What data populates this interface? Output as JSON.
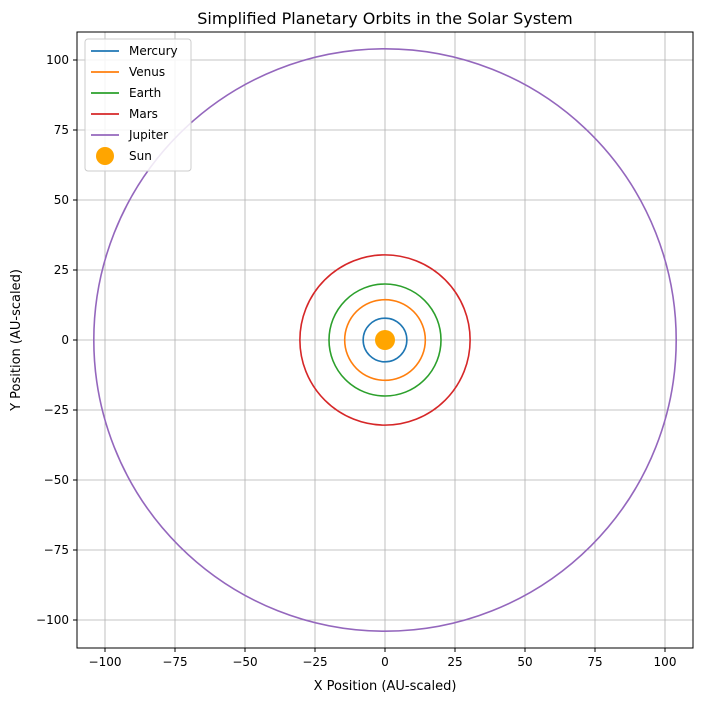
{
  "chart_data": {
    "type": "line",
    "title": "Simplified Planetary Orbits in the Solar System",
    "xlabel": "X Position (AU-scaled)",
    "ylabel": "Y Position (AU-scaled)",
    "xlim": [
      -110,
      110
    ],
    "ylim": [
      -110,
      110
    ],
    "xticks": [
      -100,
      -75,
      -50,
      -25,
      0,
      25,
      50,
      75,
      100
    ],
    "yticks": [
      -100,
      -75,
      -50,
      -25,
      0,
      25,
      50,
      75,
      100
    ],
    "grid": true,
    "legend_position": "top-left",
    "series": [
      {
        "name": "Mercury",
        "shape": "circle",
        "radius": 7.8,
        "color": "#1f77b4"
      },
      {
        "name": "Venus",
        "shape": "circle",
        "radius": 14.4,
        "color": "#ff7f0e"
      },
      {
        "name": "Earth",
        "shape": "circle",
        "radius": 20,
        "color": "#2ca02c"
      },
      {
        "name": "Mars",
        "shape": "circle",
        "radius": 30.4,
        "color": "#d62728"
      },
      {
        "name": "Jupiter",
        "shape": "circle",
        "radius": 104,
        "color": "#9467bd"
      }
    ],
    "points": [
      {
        "name": "Sun",
        "x": 0,
        "y": 0,
        "color": "#ffa500"
      }
    ]
  }
}
